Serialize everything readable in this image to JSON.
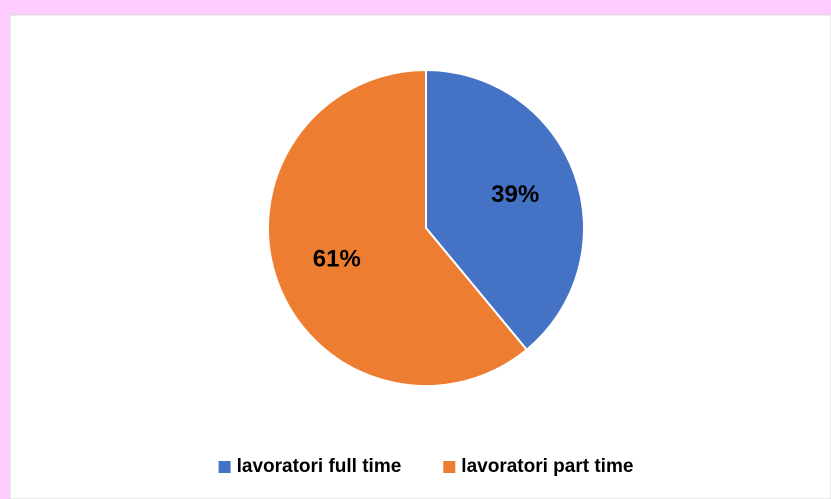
{
  "chart_data": {
    "type": "pie",
    "categories": [
      "lavoratori full time",
      "lavoratori part time"
    ],
    "values": [
      39,
      61
    ],
    "value_labels": [
      "39%",
      "61%"
    ],
    "colors": [
      "#4472c4",
      "#ed7d31"
    ],
    "legend": "bottom"
  }
}
